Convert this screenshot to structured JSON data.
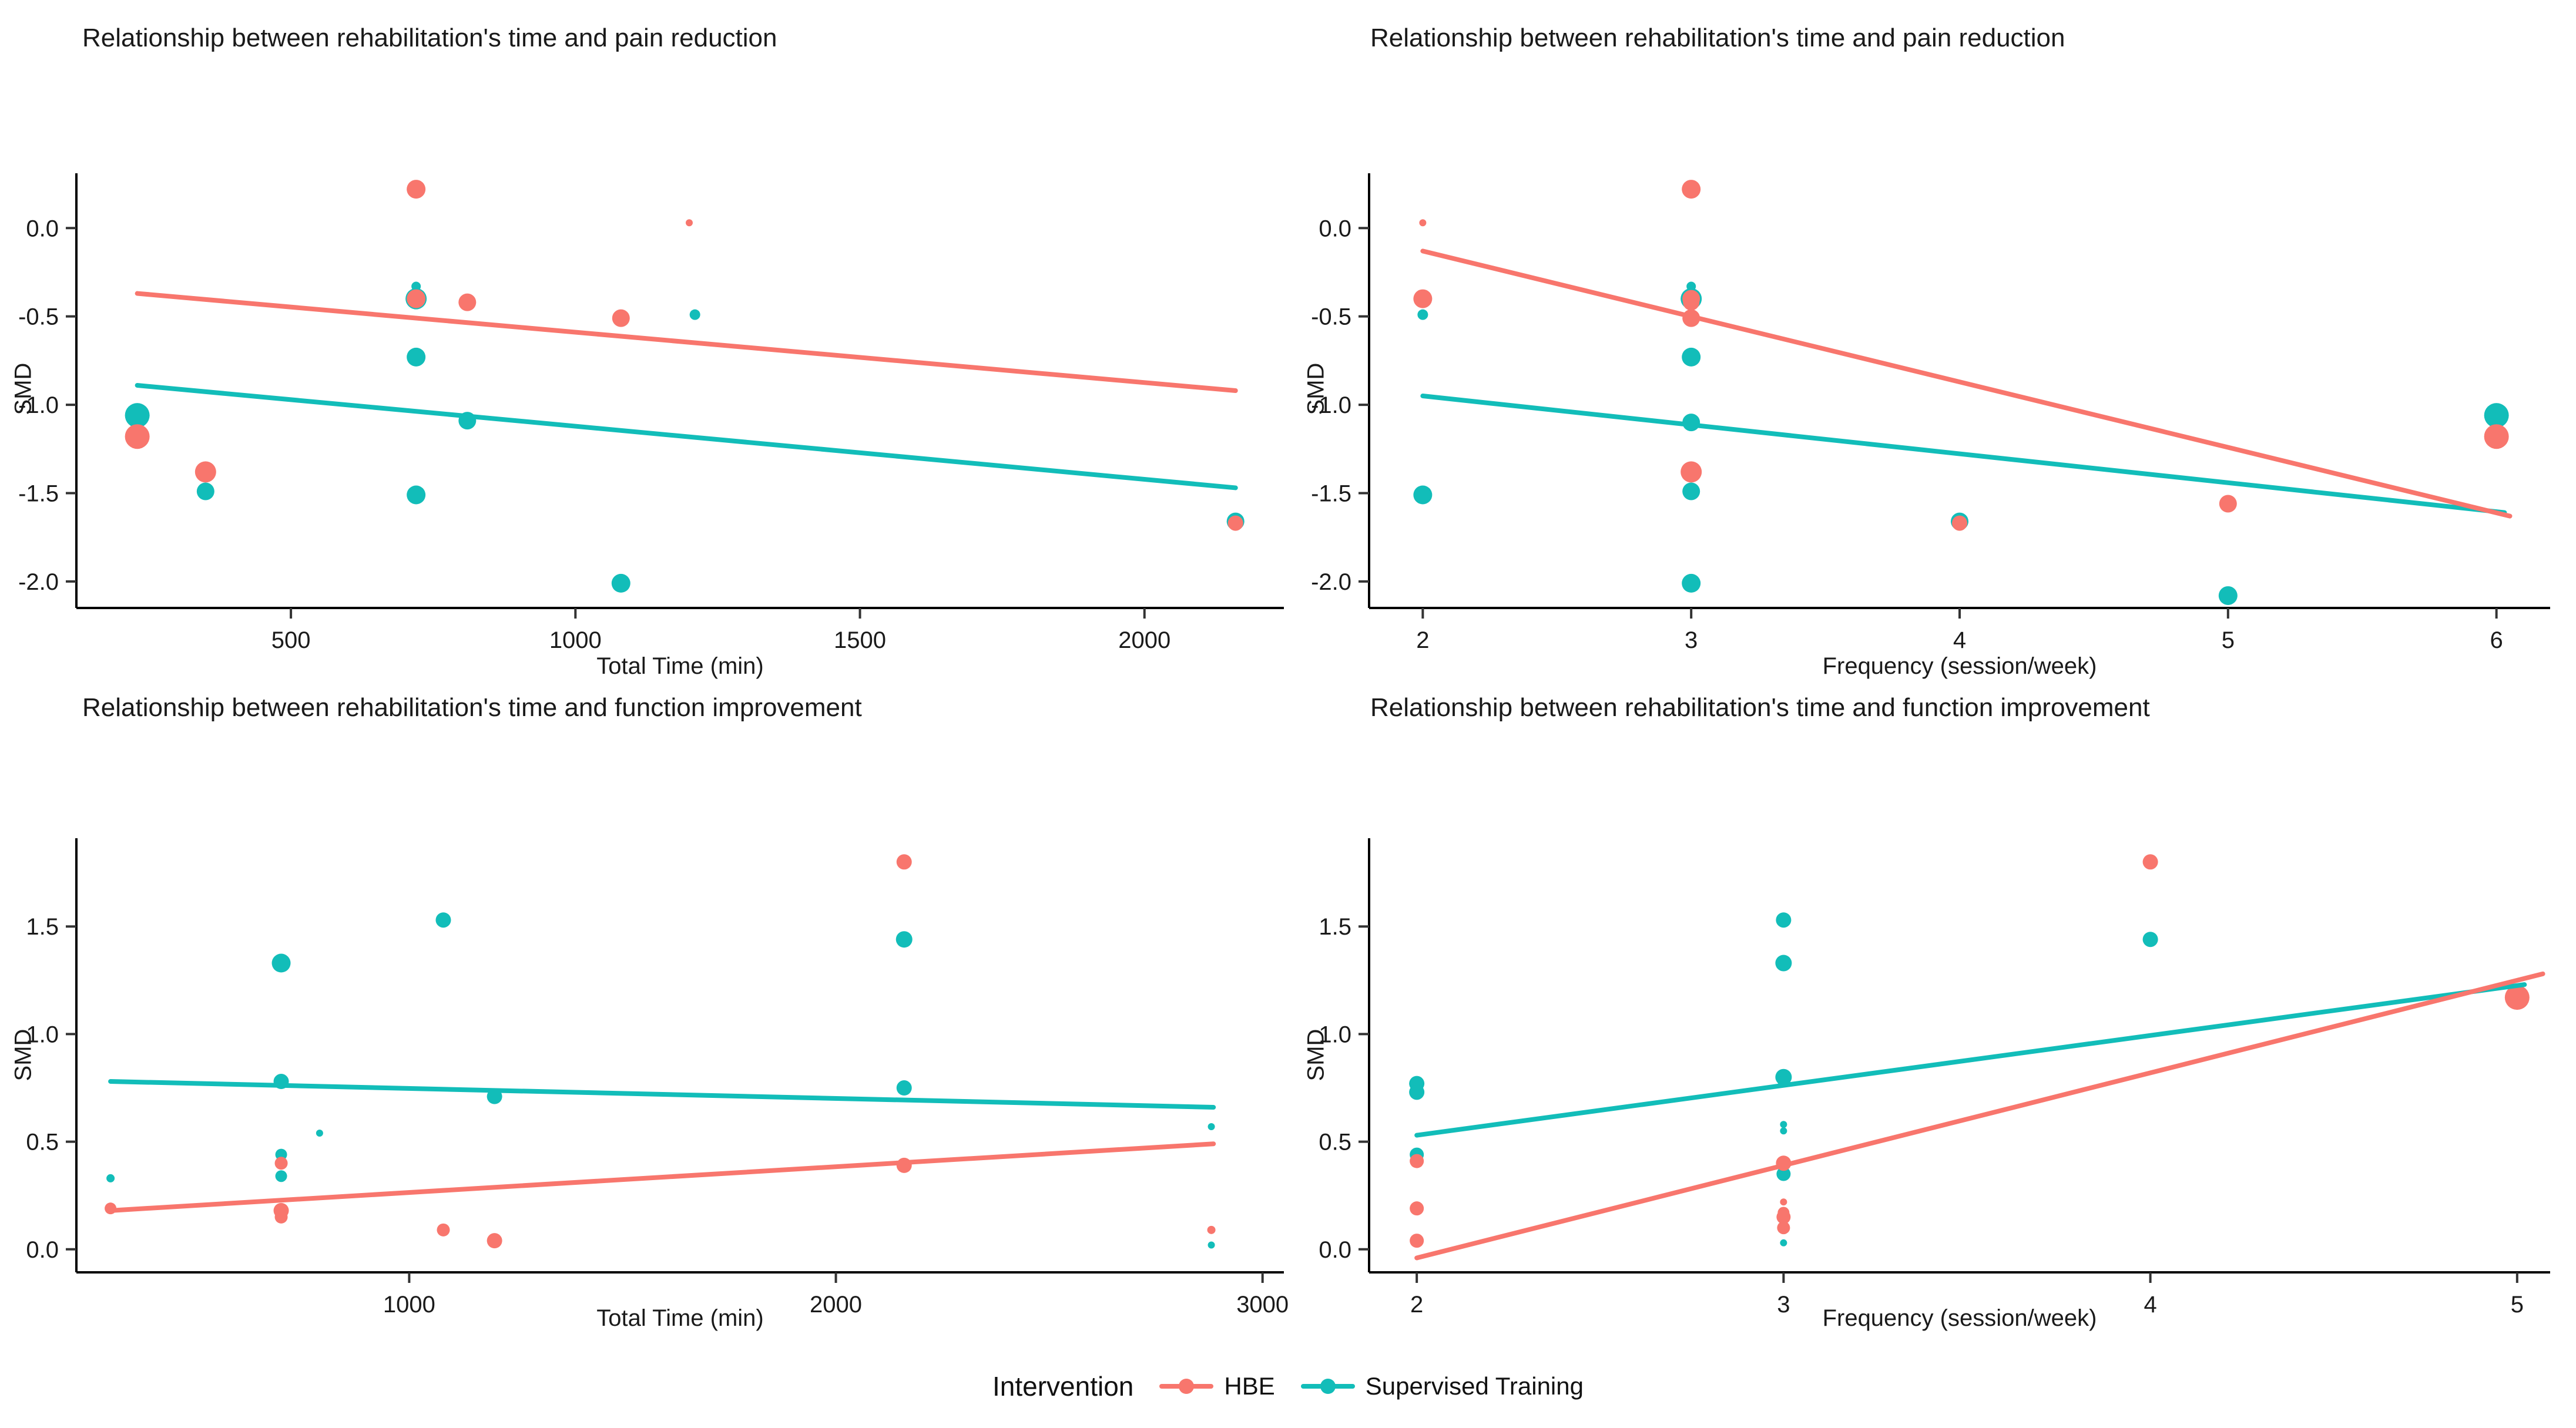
{
  "page": {
    "background": "#FFFFFF"
  },
  "colors": {
    "hbe": "#F8766D",
    "supervised": "#12BDB9",
    "axis": "#000000",
    "tick": "#333333",
    "text": "#1A1A1A"
  },
  "legend": {
    "title": "Intervention",
    "items": [
      {
        "label": "HBE",
        "color": "#F8766D"
      },
      {
        "label": "Supervised Training",
        "color": "#12BDB9"
      }
    ]
  },
  "point_format": "[x, y, marker_radius_px]",
  "chart_data": [
    {
      "type": "scatter",
      "title": "Relationship between rehabilitation's time and pain reduction",
      "xlabel": "Total Time (min)",
      "ylabel": "SMD",
      "xlim": [
        123,
        2245
      ],
      "ylim": [
        -2.15,
        0.31
      ],
      "xticks": [
        500,
        1000,
        1500,
        2000
      ],
      "xtick_labels": [
        "500",
        "1000",
        "1500",
        "2000"
      ],
      "yticks": [
        0,
        -0.5,
        -1,
        -1.5,
        -2
      ],
      "ytick_labels": [
        "0.0",
        "-0.5",
        "-1.0",
        "-1.5",
        "-2.0"
      ],
      "grid": false,
      "legend_position": "bottom",
      "series": [
        {
          "name": "HBE",
          "color": "#F8766D",
          "points": [
            [
              720,
              0.22,
              16
            ],
            [
              1200,
              0.03,
              6
            ],
            [
              720,
              -0.4,
              16
            ],
            [
              810,
              -0.42,
              15
            ],
            [
              1080,
              -0.51,
              15
            ],
            [
              230,
              -1.18,
              21
            ],
            [
              350,
              -1.38,
              18
            ],
            [
              2160,
              -1.67,
              13
            ]
          ]
        },
        {
          "name": "Supervised Training",
          "color": "#12BDB9",
          "points": [
            [
              720,
              -0.33,
              8
            ],
            [
              1210,
              -0.49,
              9
            ],
            [
              720,
              -0.4,
              18
            ],
            [
              720,
              -0.73,
              16
            ],
            [
              230,
              -1.06,
              21
            ],
            [
              810,
              -1.09,
              15
            ],
            [
              350,
              -1.49,
              15
            ],
            [
              720,
              -1.51,
              16
            ],
            [
              1080,
              -2.01,
              16
            ],
            [
              2160,
              -1.66,
              15
            ]
          ]
        }
      ],
      "trend_lines": [
        {
          "name": "HBE",
          "color": "#F8766D",
          "from": [
            230,
            -0.37
          ],
          "to": [
            2160,
            -0.92
          ]
        },
        {
          "name": "Supervised Training",
          "color": "#12BDB9",
          "from": [
            230,
            -0.89
          ],
          "to": [
            2160,
            -1.47
          ]
        }
      ]
    },
    {
      "type": "scatter",
      "title": "Relationship between rehabilitation's time and pain reduction",
      "xlabel": "Frequency (session/week)",
      "ylabel": "SMD",
      "xlim": [
        1.8,
        6.2
      ],
      "ylim": [
        -2.15,
        0.31
      ],
      "xticks": [
        2,
        3,
        4,
        5,
        6
      ],
      "xtick_labels": [
        "2",
        "3",
        "4",
        "5",
        "6"
      ],
      "yticks": [
        0,
        -0.5,
        -1,
        -1.5,
        -2
      ],
      "ytick_labels": [
        "0.0",
        "-0.5",
        "-1.0",
        "-1.5",
        "-2.0"
      ],
      "grid": false,
      "legend_position": "bottom",
      "series": [
        {
          "name": "HBE",
          "color": "#F8766D",
          "points": [
            [
              2,
              0.03,
              6
            ],
            [
              3,
              0.22,
              16
            ],
            [
              2,
              -0.4,
              16
            ],
            [
              3,
              -0.4,
              15
            ],
            [
              3,
              -0.42,
              14
            ],
            [
              3,
              -0.51,
              15
            ],
            [
              3,
              -1.38,
              18
            ],
            [
              4,
              -1.67,
              13
            ],
            [
              5,
              -1.56,
              15
            ],
            [
              6,
              -1.18,
              21
            ]
          ]
        },
        {
          "name": "Supervised Training",
          "color": "#12BDB9",
          "points": [
            [
              3,
              -0.33,
              8
            ],
            [
              2,
              -0.49,
              9
            ],
            [
              3,
              -0.4,
              18
            ],
            [
              3,
              -0.73,
              16
            ],
            [
              3,
              -1.1,
              15
            ],
            [
              2,
              -1.51,
              16
            ],
            [
              3,
              -1.49,
              15
            ],
            [
              3,
              -2.01,
              16
            ],
            [
              4,
              -1.66,
              15
            ],
            [
              5,
              -2.08,
              16
            ],
            [
              6,
              -1.06,
              21
            ]
          ]
        }
      ],
      "trend_lines": [
        {
          "name": "HBE",
          "color": "#F8766D",
          "from": [
            2,
            -0.13
          ],
          "to": [
            6.05,
            -1.63
          ]
        },
        {
          "name": "Supervised Training",
          "color": "#12BDB9",
          "from": [
            2,
            -0.95
          ],
          "to": [
            6.03,
            -1.61
          ]
        }
      ]
    },
    {
      "type": "scatter",
      "title": "Relationship between rehabilitation's time and function improvement",
      "xlabel": "Total Time (min)",
      "ylabel": "SMD",
      "xlim": [
        220,
        3050
      ],
      "ylim": [
        -0.107,
        1.91
      ],
      "xticks": [
        1000,
        2000,
        3000
      ],
      "xtick_labels": [
        "1000",
        "2000",
        "3000"
      ],
      "yticks": [
        1.5,
        1.0,
        0.5,
        0.0
      ],
      "ytick_labels": [
        "1.5",
        "1.0",
        "0.5",
        "0.0"
      ],
      "grid": false,
      "legend_position": "bottom",
      "series": [
        {
          "name": "HBE",
          "color": "#F8766D",
          "points": [
            [
              300,
              0.19,
              10
            ],
            [
              700,
              0.4,
              11
            ],
            [
              700,
              0.18,
              13
            ],
            [
              700,
              0.15,
              11
            ],
            [
              1080,
              0.09,
              11
            ],
            [
              1200,
              0.04,
              13
            ],
            [
              2160,
              1.8,
              13
            ],
            [
              2160,
              0.39,
              13
            ],
            [
              2880,
              0.09,
              7
            ]
          ]
        },
        {
          "name": "Supervised Training",
          "color": "#12BDB9",
          "points": [
            [
              300,
              0.33,
              7
            ],
            [
              700,
              1.33,
              16
            ],
            [
              700,
              0.78,
              13
            ],
            [
              700,
              0.44,
              10
            ],
            [
              700,
              0.34,
              10
            ],
            [
              790,
              0.54,
              6
            ],
            [
              1080,
              1.53,
              13
            ],
            [
              1200,
              0.71,
              13
            ],
            [
              2160,
              1.44,
              14
            ],
            [
              2160,
              0.75,
              13
            ],
            [
              2880,
              0.57,
              6
            ],
            [
              2880,
              0.02,
              6
            ]
          ]
        }
      ],
      "trend_lines": [
        {
          "name": "HBE",
          "color": "#F8766D",
          "from": [
            300,
            0.18
          ],
          "to": [
            2885,
            0.49
          ]
        },
        {
          "name": "Supervised Training",
          "color": "#12BDB9",
          "from": [
            300,
            0.78
          ],
          "to": [
            2885,
            0.66
          ]
        }
      ]
    },
    {
      "type": "scatter",
      "title": "Relationship between rehabilitation's time and function improvement",
      "xlabel": "Frequency (session/week)",
      "ylabel": "SMD",
      "xlim": [
        1.87,
        5.09
      ],
      "ylim": [
        -0.107,
        1.91
      ],
      "xticks": [
        2,
        3,
        4,
        5
      ],
      "xtick_labels": [
        "2",
        "3",
        "4",
        "5"
      ],
      "yticks": [
        1.5,
        1.0,
        0.5,
        0.0
      ],
      "ytick_labels": [
        "1.5",
        "1.0",
        "0.5",
        "0.0"
      ],
      "grid": false,
      "legend_position": "bottom",
      "series": [
        {
          "name": "HBE",
          "color": "#F8766D",
          "points": [
            [
              2,
              0.41,
              12
            ],
            [
              2,
              0.19,
              12
            ],
            [
              2,
              0.04,
              12
            ],
            [
              3,
              0.4,
              13
            ],
            [
              3,
              0.22,
              6
            ],
            [
              3,
              0.17,
              10
            ],
            [
              3,
              0.15,
              12
            ],
            [
              3,
              0.1,
              11
            ],
            [
              4,
              1.8,
              13
            ],
            [
              5,
              1.17,
              21
            ]
          ]
        },
        {
          "name": "Supervised Training",
          "color": "#12BDB9",
          "points": [
            [
              2,
              0.77,
              13
            ],
            [
              2,
              0.73,
              13
            ],
            [
              2,
              0.44,
              12
            ],
            [
              3,
              1.53,
              13
            ],
            [
              3,
              1.33,
              14
            ],
            [
              3,
              0.8,
              14
            ],
            [
              3,
              0.78,
              10
            ],
            [
              3,
              0.58,
              6
            ],
            [
              3,
              0.55,
              6
            ],
            [
              3,
              0.35,
              12
            ],
            [
              3,
              0.03,
              6
            ],
            [
              4,
              1.44,
              13
            ]
          ]
        }
      ],
      "trend_lines": [
        {
          "name": "HBE",
          "color": "#F8766D",
          "from": [
            2,
            -0.04
          ],
          "to": [
            5.07,
            1.28
          ]
        },
        {
          "name": "Supervised Training",
          "color": "#12BDB9",
          "from": [
            2,
            0.53
          ],
          "to": [
            5.02,
            1.23
          ]
        }
      ]
    }
  ]
}
